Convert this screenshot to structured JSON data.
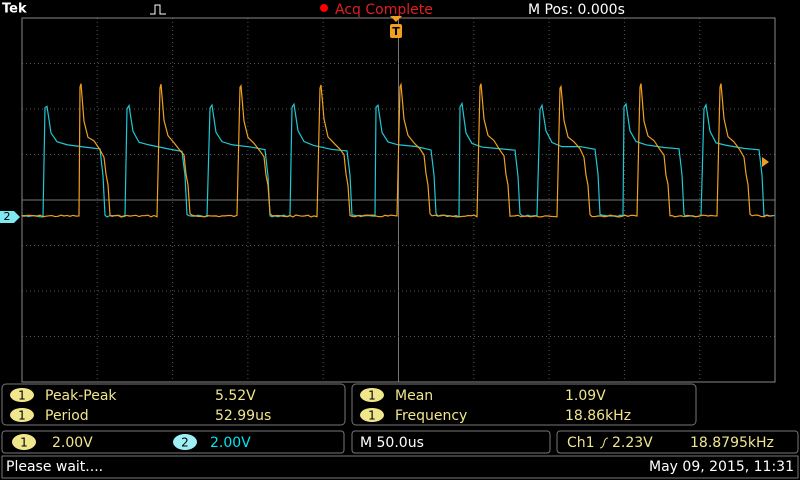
{
  "header": {
    "brand": "Tek",
    "status": "Acq Complete",
    "position": "M Pos: 0.000s",
    "trigger_marker": "T"
  },
  "measurements": [
    {
      "channel": "1",
      "label": "Peak-Peak",
      "value": "5.52V"
    },
    {
      "channel": "1",
      "label": "Period",
      "value": "52.99us"
    },
    {
      "channel": "1",
      "label": "Mean",
      "value": "1.09V"
    },
    {
      "channel": "1",
      "label": "Frequency",
      "value": "18.86kHz"
    }
  ],
  "channels": [
    {
      "number": "1",
      "scale": "2.00V"
    },
    {
      "number": "2",
      "scale": "2.00V"
    }
  ],
  "timebase": "M 50.0us",
  "trigger": {
    "source": "Ch1",
    "level": "2.23V",
    "frequency": "18.8795kHz"
  },
  "status_bar": {
    "message": "Please wait....",
    "date": "May 09, 2015, 11:31"
  }
}
